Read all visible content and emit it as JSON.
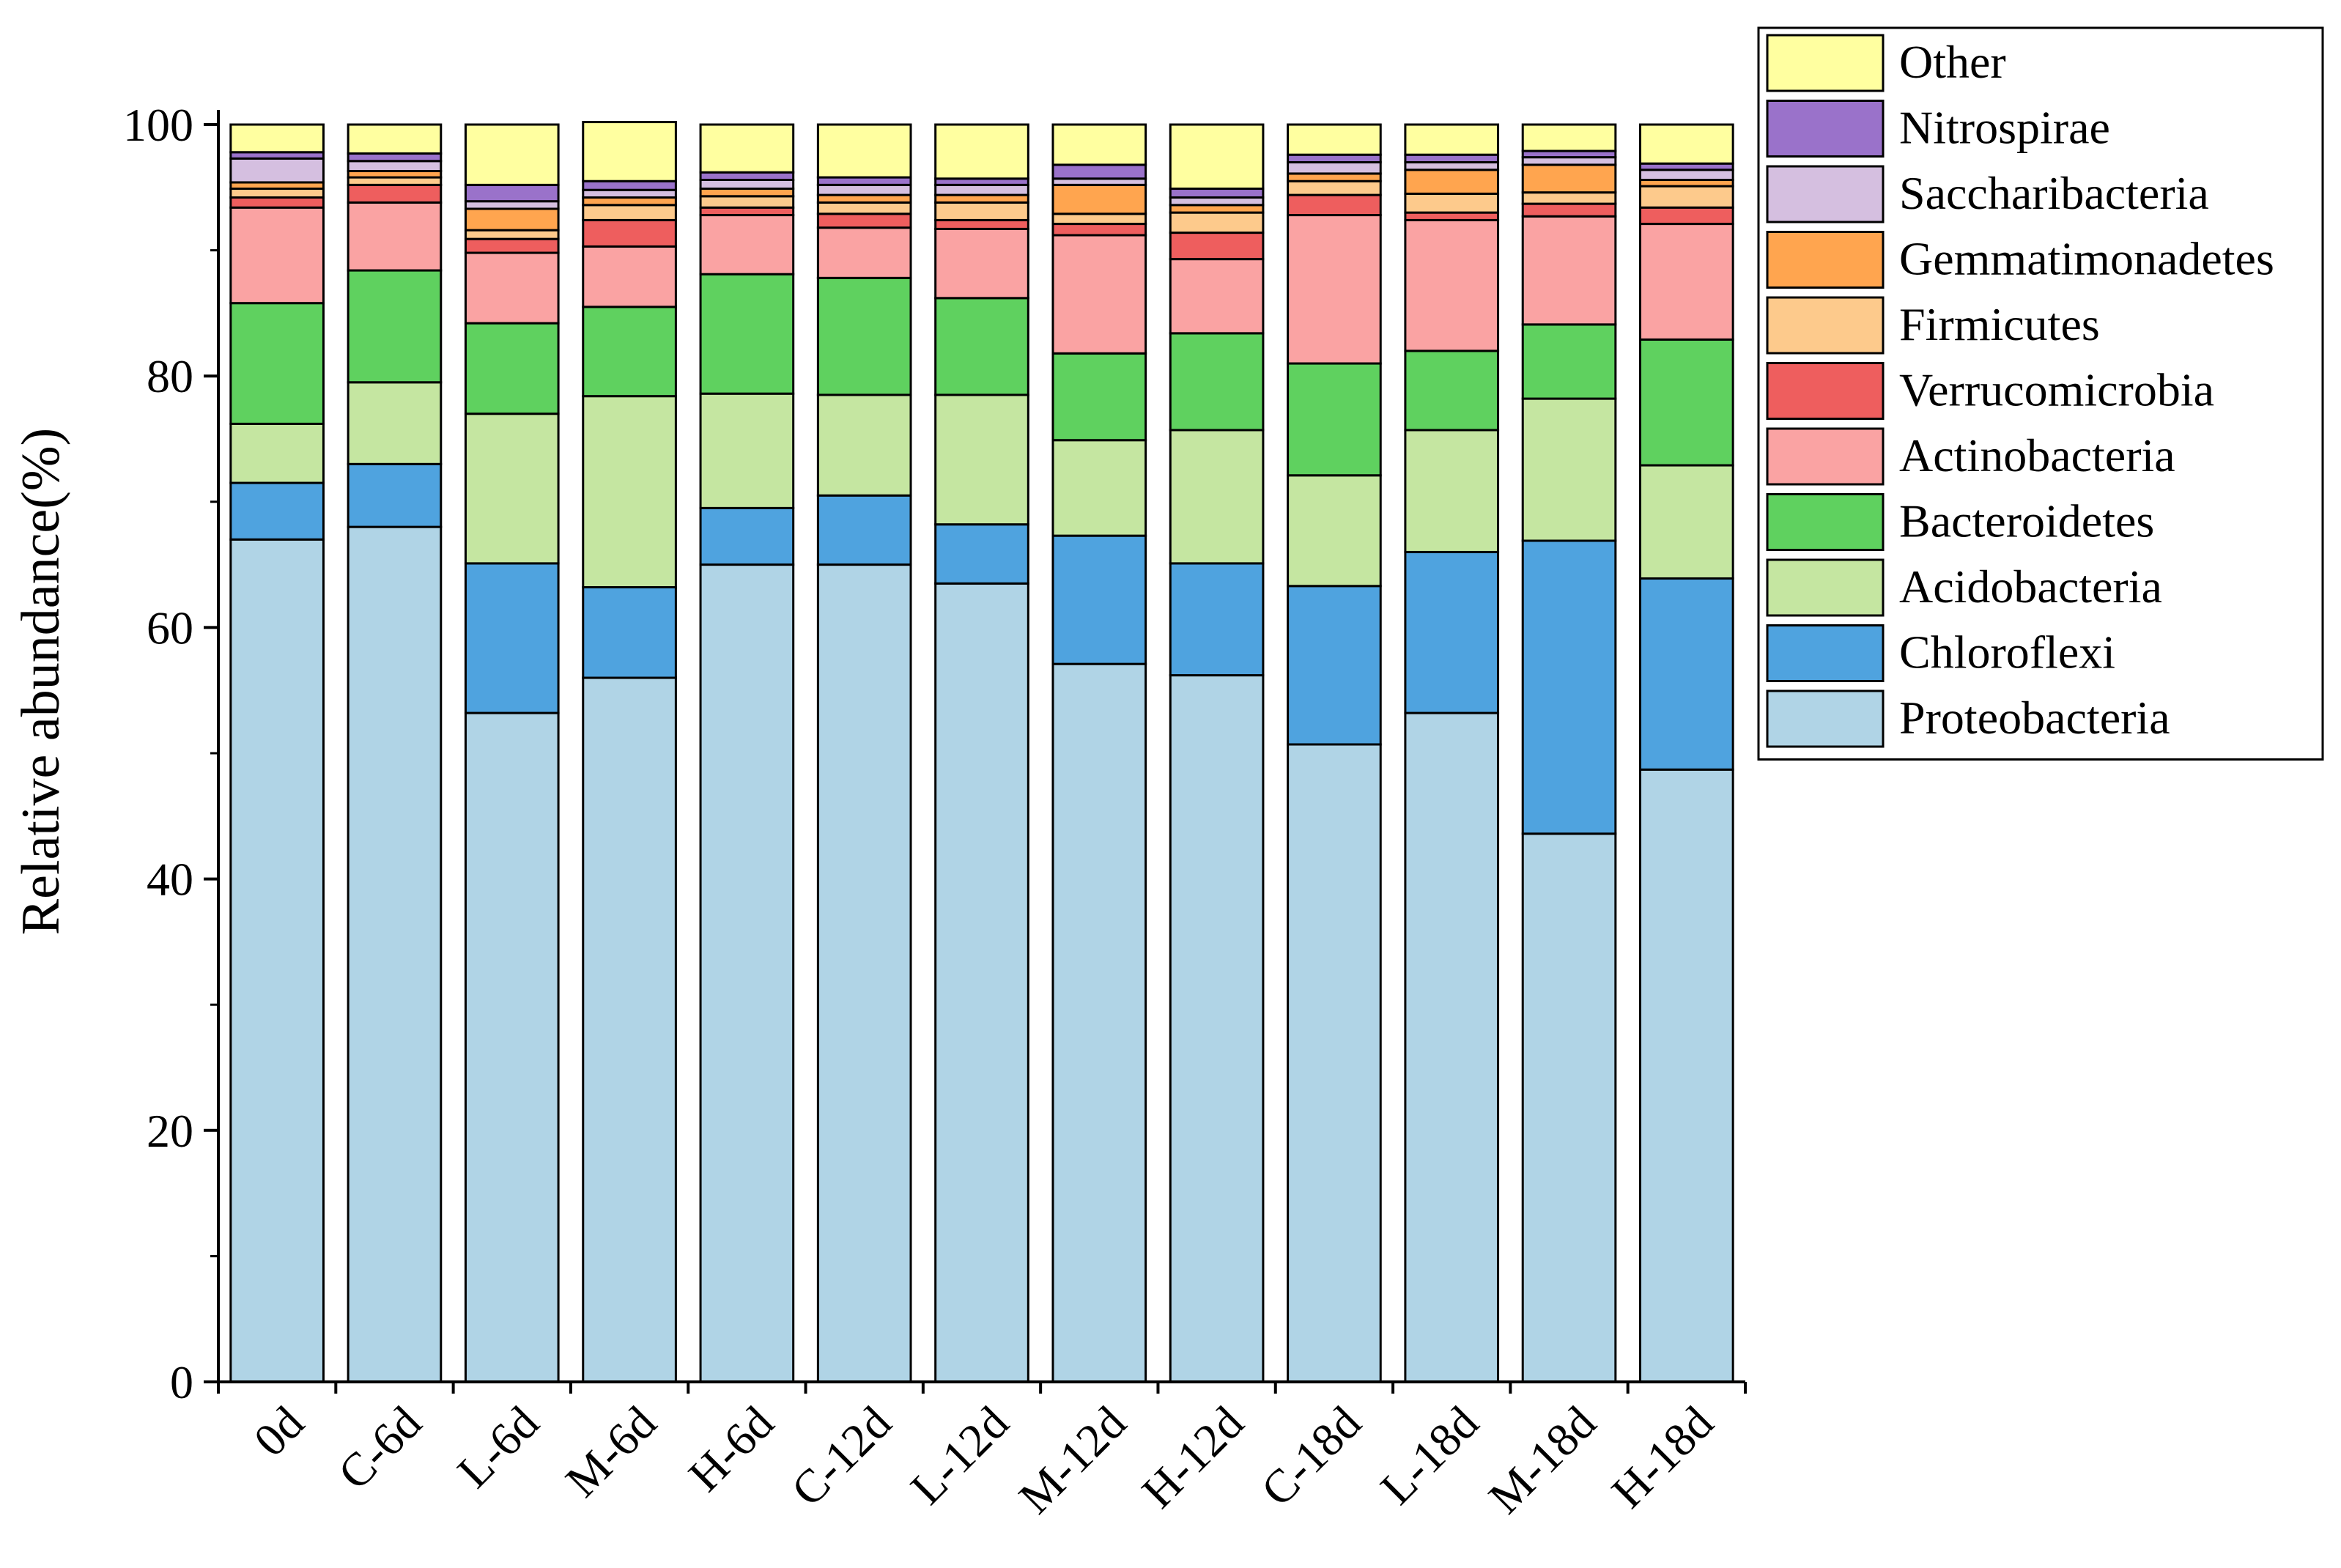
{
  "chart_data": {
    "type": "stacked-bar",
    "title": "",
    "xlabel": "",
    "ylabel": "Relative abundance(%)",
    "ylim": [
      0,
      100
    ],
    "yticks": [
      0,
      20,
      40,
      60,
      80,
      100
    ],
    "grid": false,
    "legend_position": "top-right, outside plot",
    "categories": [
      "0d",
      "C-6d",
      "L-6d",
      "M-6d",
      "H-6d",
      "C-12d",
      "L-12d",
      "M-12d",
      "H-12d",
      "C-18d",
      "L-18d",
      "M-18d",
      "H-18d"
    ],
    "series": [
      {
        "name": "Proteobacteria",
        "color": "#B0D4E6",
        "values": [
          67.0,
          68.0,
          53.2,
          56.0,
          65.0,
          65.0,
          63.5,
          57.1,
          56.2,
          50.7,
          53.2,
          43.6,
          48.7
        ]
      },
      {
        "name": "Chloroflexi",
        "color": "#4FA3DF",
        "values": [
          4.5,
          5.0,
          11.9,
          7.2,
          4.5,
          5.5,
          4.7,
          10.2,
          8.9,
          12.6,
          12.8,
          23.3,
          15.2
        ]
      },
      {
        "name": "Acidobacteria",
        "color": "#C5E6A1",
        "values": [
          4.7,
          6.5,
          11.9,
          15.2,
          9.1,
          8.0,
          10.3,
          7.6,
          10.6,
          8.8,
          9.7,
          11.3,
          9.0
        ]
      },
      {
        "name": "Bacteroidetes",
        "color": "#5FD15F",
        "values": [
          9.6,
          8.9,
          7.2,
          7.1,
          9.5,
          9.3,
          7.7,
          6.9,
          7.7,
          8.9,
          6.3,
          5.9,
          10.0
        ]
      },
      {
        "name": "Actinobacteria",
        "color": "#FAA3A3",
        "values": [
          7.6,
          5.4,
          5.6,
          4.8,
          4.7,
          4.0,
          5.5,
          9.4,
          5.9,
          11.8,
          10.4,
          8.6,
          9.2
        ]
      },
      {
        "name": "Verrucomicrobia",
        "color": "#EE5E5E",
        "values": [
          0.8,
          1.4,
          1.1,
          2.1,
          0.6,
          1.1,
          0.7,
          0.9,
          2.1,
          1.6,
          0.6,
          1.0,
          1.3
        ]
      },
      {
        "name": "Firmicutes",
        "color": "#FDCA8C",
        "values": [
          0.7,
          0.6,
          0.7,
          1.2,
          0.9,
          0.9,
          1.4,
          0.8,
          1.6,
          1.1,
          1.5,
          0.9,
          1.7
        ]
      },
      {
        "name": "Gemmatimonadetes",
        "color": "#FFA54F",
        "values": [
          0.5,
          0.5,
          1.7,
          0.6,
          0.6,
          0.6,
          0.6,
          2.3,
          0.6,
          0.6,
          1.9,
          2.2,
          0.5
        ]
      },
      {
        "name": "Saccharibacteria",
        "color": "#D5BFE0",
        "values": [
          1.9,
          0.8,
          0.6,
          0.6,
          0.7,
          0.8,
          0.8,
          0.5,
          0.6,
          0.9,
          0.6,
          0.6,
          0.8
        ]
      },
      {
        "name": "Nitrospirae",
        "color": "#9A72CA",
        "values": [
          0.5,
          0.6,
          1.3,
          0.7,
          0.6,
          0.6,
          0.5,
          1.1,
          0.7,
          0.6,
          0.6,
          0.5,
          0.5
        ]
      },
      {
        "name": "Other",
        "color": "#FFFFA0",
        "values": [
          2.2,
          2.3,
          4.8,
          4.7,
          3.8,
          4.2,
          4.3,
          3.2,
          5.1,
          2.4,
          2.4,
          2.1,
          3.1
        ]
      }
    ]
  }
}
